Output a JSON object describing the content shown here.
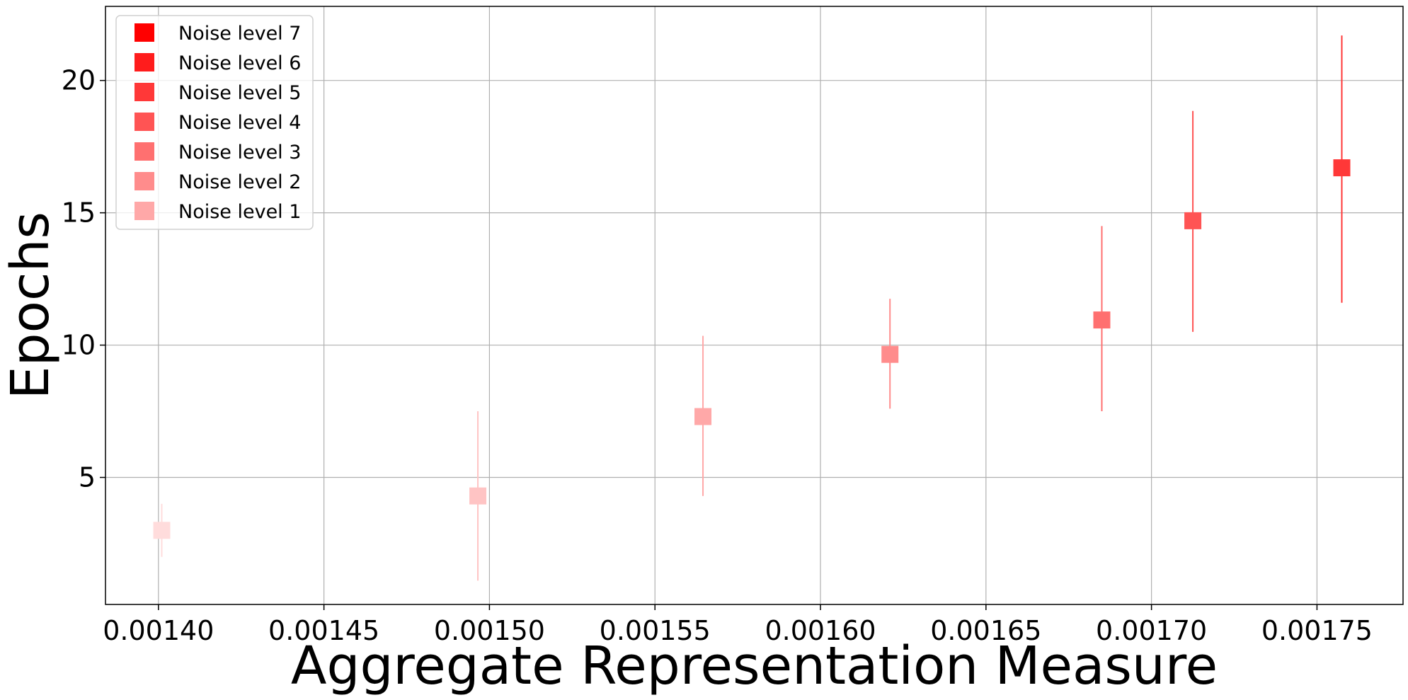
{
  "chart_data": {
    "type": "scatter",
    "title": "",
    "xlabel": "Aggregate Representation Measure",
    "ylabel": "Epochs",
    "xlim": [
      0.001384,
      0.001776
    ],
    "ylim": [
      0.2,
      22.8
    ],
    "x_ticks": [
      {
        "value": 0.0014,
        "label": "0.00140"
      },
      {
        "value": 0.00145,
        "label": "0.00145"
      },
      {
        "value": 0.0015,
        "label": "0.00150"
      },
      {
        "value": 0.00155,
        "label": "0.00155"
      },
      {
        "value": 0.0016,
        "label": "0.00160"
      },
      {
        "value": 0.00165,
        "label": "0.00165"
      },
      {
        "value": 0.0017,
        "label": "0.00170"
      },
      {
        "value": 0.00175,
        "label": "0.00175"
      }
    ],
    "y_ticks": [
      {
        "value": 5,
        "label": "5"
      },
      {
        "value": 10,
        "label": "10"
      },
      {
        "value": 15,
        "label": "15"
      },
      {
        "value": 20,
        "label": "20"
      }
    ],
    "grid": true,
    "legend_position": "top-left",
    "marker": "square",
    "legend": [
      {
        "label": "Noise level 7",
        "color": "#ff0000"
      },
      {
        "label": "Noise level 6",
        "color": "#ff1c1c"
      },
      {
        "label": "Noise level 5",
        "color": "#ff3838"
      },
      {
        "label": "Noise level 4",
        "color": "#ff5454"
      },
      {
        "label": "Noise level 3",
        "color": "#ff7070"
      },
      {
        "label": "Noise level 2",
        "color": "#ff8c8c"
      },
      {
        "label": "Noise level 1",
        "color": "#ffa8a8"
      }
    ],
    "points": [
      {
        "x": 0.001401,
        "y": 3.0,
        "err_low": 2.0,
        "err_high": 4.0,
        "color": "#ffdcdc"
      },
      {
        "x": 0.0014965,
        "y": 4.3,
        "err_low": 1.1,
        "err_high": 7.5,
        "color": "#ffc4c4"
      },
      {
        "x": 0.0015645,
        "y": 7.3,
        "err_low": 4.3,
        "err_high": 10.35,
        "color": "#ffa8a8"
      },
      {
        "x": 0.001621,
        "y": 9.65,
        "err_low": 7.6,
        "err_high": 11.75,
        "color": "#ff8c8c"
      },
      {
        "x": 0.001685,
        "y": 10.95,
        "err_low": 7.5,
        "err_high": 14.5,
        "color": "#ff7070"
      },
      {
        "x": 0.0017125,
        "y": 14.7,
        "err_low": 10.5,
        "err_high": 18.85,
        "color": "#ff5454"
      },
      {
        "x": 0.0017575,
        "y": 16.7,
        "err_low": 11.6,
        "err_high": 21.7,
        "color": "#ff3838"
      }
    ]
  }
}
